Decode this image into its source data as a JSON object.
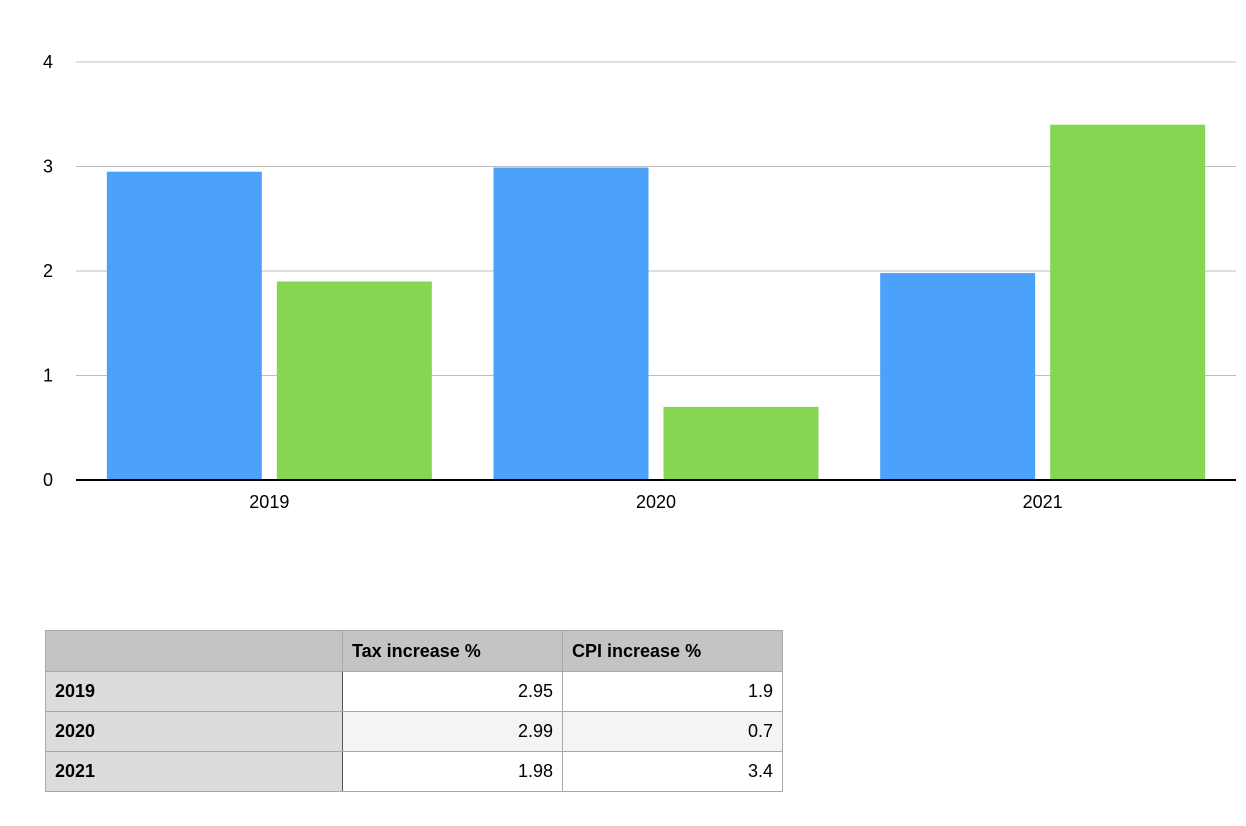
{
  "chart_data": {
    "type": "bar",
    "categories": [
      "2019",
      "2020",
      "2021"
    ],
    "series": [
      {
        "name": "Tax increase %",
        "color": "#4ca1fa",
        "values": [
          2.95,
          2.99,
          1.98
        ]
      },
      {
        "name": "CPI increase %",
        "color": "#86d653",
        "values": [
          1.9,
          0.7,
          3.4
        ]
      }
    ],
    "ylim": [
      0,
      4
    ],
    "yticks": [
      "0",
      "1",
      "2",
      "3",
      "4"
    ],
    "grid": true,
    "gridColor": "#bdbdbd",
    "title": "",
    "xlabel": "",
    "ylabel": ""
  },
  "table": {
    "headers": [
      "",
      "Tax increase %",
      "CPI increase %"
    ],
    "rows": [
      {
        "label": "2019",
        "tax": "2.95",
        "cpi": "1.9"
      },
      {
        "label": "2020",
        "tax": "2.99",
        "cpi": "0.7"
      },
      {
        "label": "2021",
        "tax": "1.98",
        "cpi": "3.4"
      }
    ]
  }
}
